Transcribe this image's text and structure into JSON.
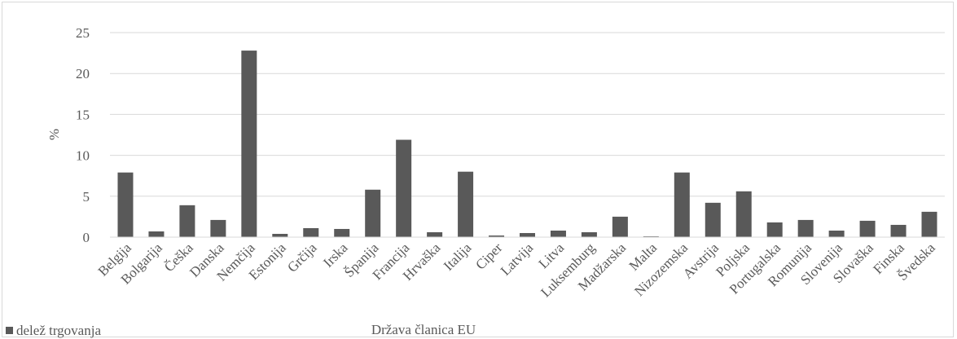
{
  "chart_data": {
    "type": "bar",
    "categories": [
      "Belgija",
      "Bolgarija",
      "Češka",
      "Danska",
      "Nemčija",
      "Estonija",
      "Grčija",
      "Irska",
      "Španija",
      "Francija",
      "Hrvaška",
      "Italija",
      "Ciper",
      "Latvija",
      "Litva",
      "Luksemburg",
      "Madžarska",
      "Malta",
      "Nizozemska",
      "Avstrija",
      "Poljska",
      "Portugalska",
      "Romunija",
      "Slovenija",
      "Slovaška",
      "Finska",
      "Švedska"
    ],
    "series": [
      {
        "name": "delež trgovanja",
        "color": "#595959",
        "values": [
          7.9,
          0.7,
          3.9,
          2.1,
          22.8,
          0.4,
          1.1,
          1.0,
          5.8,
          11.9,
          0.6,
          8.0,
          0.2,
          0.5,
          0.8,
          0.6,
          2.5,
          0.1,
          7.9,
          4.2,
          5.6,
          1.8,
          2.1,
          0.8,
          2.0,
          1.5,
          3.1
        ]
      }
    ],
    "xlabel": "Država članica EU",
    "ylabel": "%",
    "ylim": [
      0,
      25
    ],
    "yticks": [
      0,
      5,
      10,
      15,
      20,
      25
    ],
    "grid": true,
    "legend_position": "bottom-left"
  }
}
